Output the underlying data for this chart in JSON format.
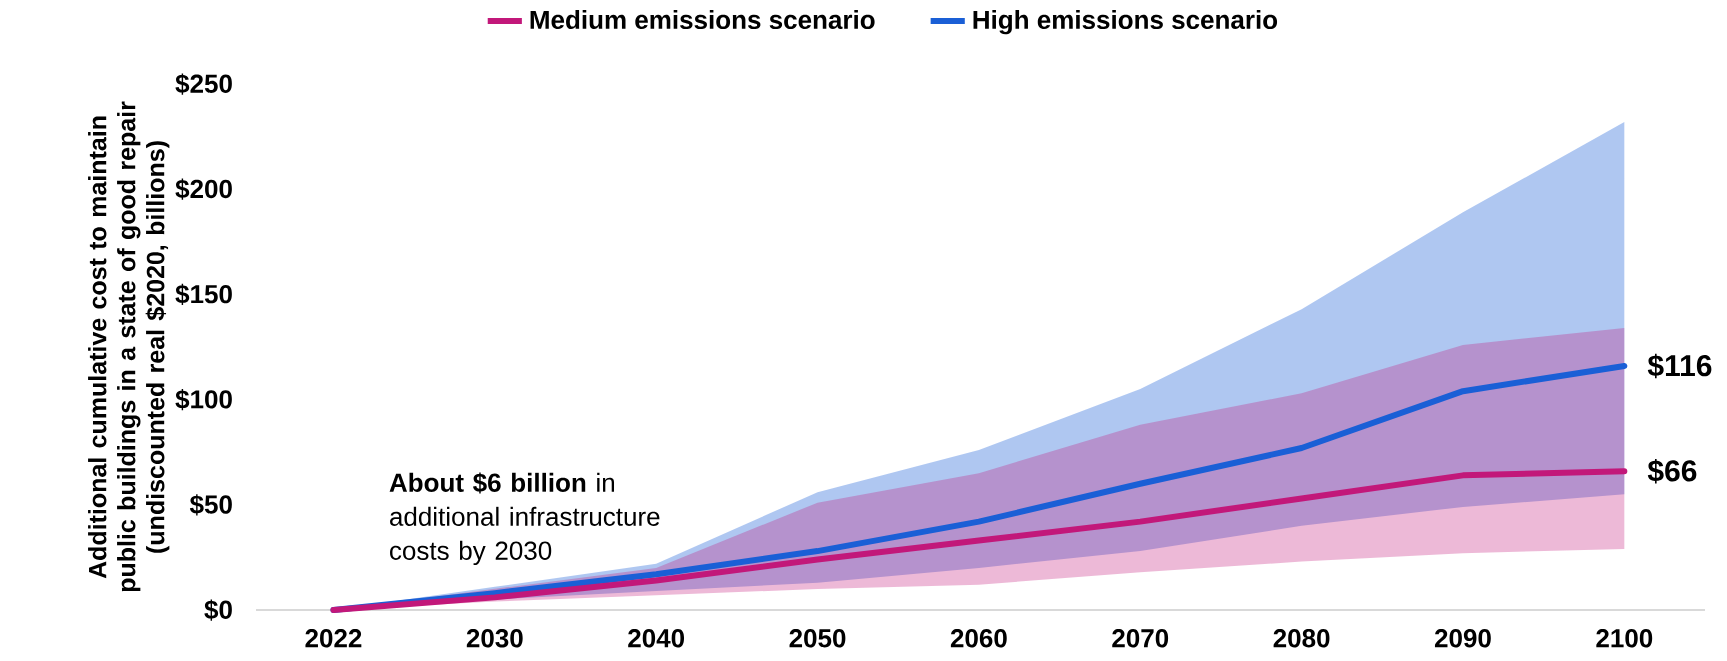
{
  "chart_data": {
    "type": "line",
    "ylabel": "Additional cumulative cost to maintain public buildings in a state of good repair (undiscounted real $2020, billions)",
    "categories": [
      "2022",
      "2030",
      "2040",
      "2050",
      "2060",
      "2070",
      "2080",
      "2090",
      "2100"
    ],
    "series": [
      {
        "name": "Medium emissions scenario",
        "color": "#c2187a",
        "values": [
          0,
          6,
          14,
          24,
          33,
          42,
          53,
          64,
          66
        ],
        "lower": [
          0,
          4,
          7,
          10,
          12,
          18,
          23,
          27,
          29
        ],
        "upper": [
          0,
          10.06,
          20,
          51,
          65,
          88,
          103,
          126,
          134
        ],
        "value_labels": [
          null,
          null,
          null,
          null,
          null,
          null,
          null,
          null,
          "$66"
        ]
      },
      {
        "name": "High emissions scenario",
        "color": "#1a5fd6",
        "values": [
          0,
          8,
          17,
          28,
          42,
          60,
          77,
          104,
          116
        ],
        "lower": [
          0,
          5,
          9.06,
          13,
          20,
          28,
          40,
          49,
          55
        ],
        "upper": [
          0,
          11,
          22,
          56,
          76,
          105,
          143,
          189,
          232
        ],
        "value_labels": [
          null,
          null,
          null,
          null,
          null,
          null,
          null,
          null,
          "$116"
        ]
      }
    ],
    "ylim": [
      0,
      250
    ],
    "yticks": [
      {
        "value": 0,
        "label": "$0"
      },
      {
        "value": 50,
        "label": "$50"
      },
      {
        "value": 100,
        "label": "$100"
      },
      {
        "value": 150,
        "label": "$150"
      },
      {
        "value": 200,
        "label": "$200"
      },
      {
        "value": 250,
        "label": "$250"
      }
    ],
    "annotations": [
      {
        "text": "**About $6 billion** in additional infrastructure costs by 2030",
        "x": "2030",
        "y": 6
      }
    ],
    "grid": false,
    "legend": "top",
    "line_style": "solid",
    "marker": "none"
  }
}
